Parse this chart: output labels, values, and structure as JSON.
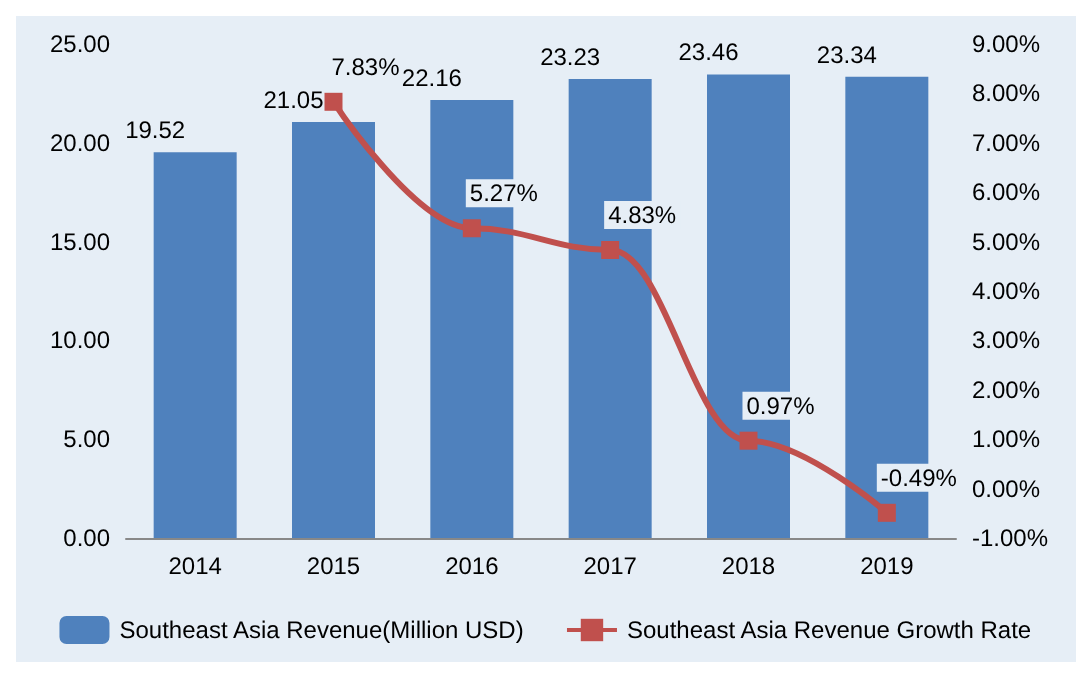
{
  "chart_data": {
    "type": "bar",
    "categories": [
      "2014",
      "2015",
      "2016",
      "2017",
      "2018",
      "2019"
    ],
    "series": [
      {
        "name": "Southeast Asia Revenue(Million USD)",
        "color": "#4f81bd",
        "values": [
          19.52,
          21.05,
          22.16,
          23.23,
          23.46,
          23.34
        ],
        "value_labels": [
          "19.52",
          "21.05",
          "22.16",
          "23.23",
          "23.46",
          "23.34"
        ]
      },
      {
        "name": "Southeast Asia Revenue Growth Rate",
        "type": "line",
        "axis": "y2",
        "color": "#c0504d",
        "values": [
          null,
          7.83,
          5.27,
          4.83,
          0.97,
          -0.49
        ],
        "value_labels": [
          null,
          "7.83%",
          "5.27%",
          "4.83%",
          "0.97%",
          "-0.49%"
        ]
      }
    ],
    "ylim": [
      0,
      25
    ],
    "yticks": [
      {
        "value": 0,
        "label": "0.00"
      },
      {
        "value": 5,
        "label": "5.00"
      },
      {
        "value": 10,
        "label": "10.00"
      },
      {
        "value": 15,
        "label": "15.00"
      },
      {
        "value": 20,
        "label": "20.00"
      },
      {
        "value": 25,
        "label": "25.00"
      }
    ],
    "y2lim": [
      -1,
      9
    ],
    "y2ticks": [
      {
        "value": -1,
        "label": "-1.00%"
      },
      {
        "value": 0,
        "label": "0.00%"
      },
      {
        "value": 1,
        "label": "1.00%"
      },
      {
        "value": 2,
        "label": "2.00%"
      },
      {
        "value": 3,
        "label": "3.00%"
      },
      {
        "value": 4,
        "label": "4.00%"
      },
      {
        "value": 5,
        "label": "5.00%"
      },
      {
        "value": 6,
        "label": "6.00%"
      },
      {
        "value": 7,
        "label": "7.00%"
      },
      {
        "value": 8,
        "label": "8.00%"
      },
      {
        "value": 9,
        "label": "9.00%"
      }
    ],
    "legend": "bottom",
    "marker": "square",
    "grid": false
  }
}
